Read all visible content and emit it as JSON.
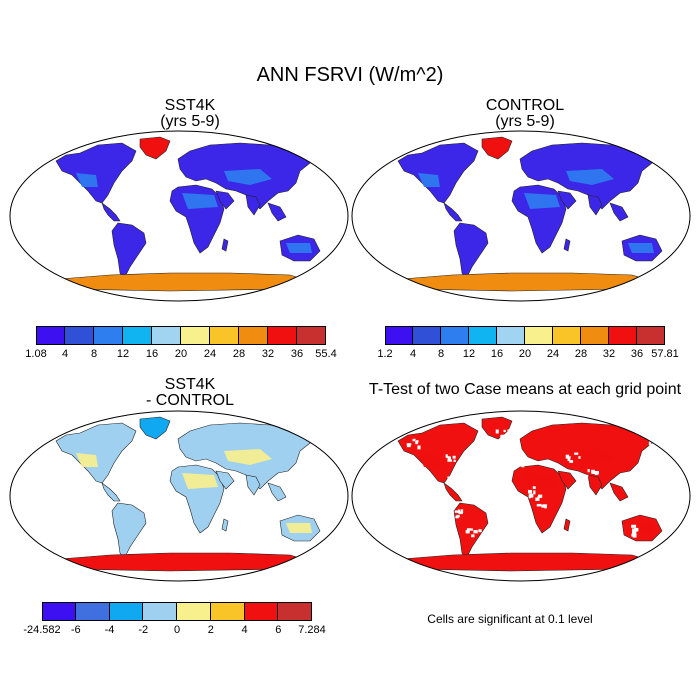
{
  "figure": {
    "title": "ANN FSRVI (W/m^2)",
    "panels": [
      {
        "title": [
          "SST4K",
          "(yrs 5-9)"
        ],
        "field": "sst4k"
      },
      {
        "title": [
          "CONTROL",
          "(yrs 5-9)"
        ],
        "field": "control"
      },
      {
        "title": [
          "SST4K",
          "- CONTROL"
        ],
        "field": "diff"
      },
      {
        "title": [
          "T-Test of two Case means at each grid point"
        ],
        "field": "ttest"
      }
    ],
    "note": "Cells are significant at 0.1 level"
  },
  "colorbars": {
    "sst4k": {
      "labels": [
        "1.08",
        "4",
        "8",
        "12",
        "16",
        "20",
        "24",
        "28",
        "32",
        "36",
        "55.4"
      ],
      "colors": [
        "#3c10f0",
        "#3050d8",
        "#2e7ef0",
        "#10b4f0",
        "#a0d4f0",
        "#f8f08c",
        "#f8c428",
        "#f08c10",
        "#f01010",
        "#c83030"
      ]
    },
    "control": {
      "labels": [
        "1.2",
        "4",
        "8",
        "12",
        "16",
        "20",
        "24",
        "28",
        "32",
        "36",
        "57.81"
      ],
      "colors": [
        "#3c10f0",
        "#3050d8",
        "#2e7ef0",
        "#10b4f0",
        "#a0d4f0",
        "#f8f08c",
        "#f8c428",
        "#f08c10",
        "#f01010",
        "#c83030"
      ]
    },
    "diff": {
      "labels": [
        "-24.582",
        "-6",
        "-4",
        "-2",
        "0",
        "2",
        "4",
        "6",
        "7.284"
      ],
      "colors": [
        "#3c10f0",
        "#4070e0",
        "#10a8f0",
        "#a0d0f0",
        "#f8f08c",
        "#f8c428",
        "#f01010",
        "#c83030"
      ]
    }
  },
  "map_colors": {
    "sst4k": {
      "ocean": "#ffffff",
      "land": "#3c26e8",
      "dry": "#2e7ef0",
      "greenland": "#f01010",
      "antarctica": "#f08c10"
    },
    "control": {
      "ocean": "#ffffff",
      "land": "#3c26e8",
      "dry": "#2e7ef0",
      "greenland": "#f01010",
      "antarctica": "#f08c10"
    },
    "diff": {
      "ocean": "#ffffff",
      "land": "#a0d0f0",
      "dry": "#f8f08c",
      "greenland": "#10a8f0",
      "antarctica": "#f01010"
    },
    "ttest": {
      "ocean": "#ffffff",
      "land": "#f01010",
      "dry": "#f01010",
      "greenland": "#f01010",
      "antarctica": "#f01010"
    }
  }
}
